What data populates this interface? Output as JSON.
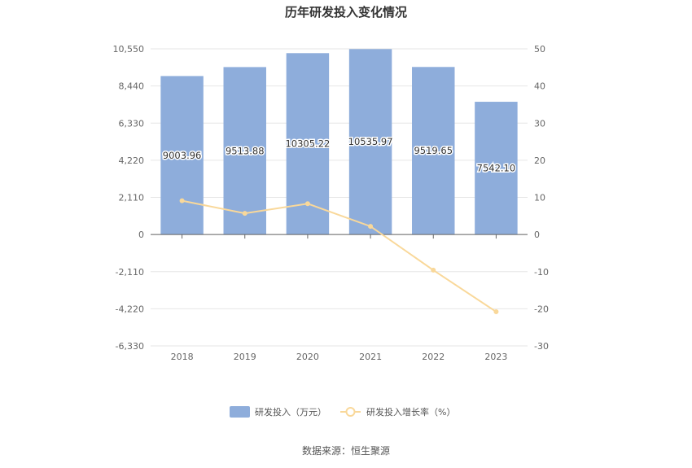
{
  "chart_data": {
    "type": "bar",
    "title": "历年研发投入变化情况",
    "categories": [
      "2018",
      "2019",
      "2020",
      "2021",
      "2022",
      "2023"
    ],
    "series": [
      {
        "name": "研发投入（万元）",
        "type": "bar",
        "axis": "left",
        "color": "#8eaddb",
        "values": [
          9003.96,
          9513.88,
          10305.22,
          10535.97,
          9519.65,
          7542.1
        ],
        "labels": [
          "9003.96",
          "9513.88",
          "10305.22",
          "10535.97",
          "9519.65",
          "7542.10"
        ]
      },
      {
        "name": "研发投入增长率（%）",
        "type": "line",
        "axis": "right",
        "color": "#f9d89a",
        "values": [
          9.1,
          5.7,
          8.3,
          2.2,
          -9.6,
          -20.8
        ]
      }
    ],
    "y_left": {
      "ylim": [
        -6330,
        10550
      ],
      "ticks": [
        10550,
        8440,
        6330,
        4220,
        2110,
        0,
        -2110,
        -4220,
        -6330
      ],
      "tick_labels": [
        "10,550",
        "8,440",
        "6,330",
        "4,220",
        "2,110",
        "0",
        "-2,110",
        "-4,220",
        "-6,330"
      ]
    },
    "y_right": {
      "ylim": [
        -30,
        50
      ],
      "ticks": [
        50,
        40,
        30,
        20,
        10,
        0,
        -10,
        -20,
        -30
      ],
      "tick_labels": [
        "50",
        "40",
        "30",
        "20",
        "10",
        "0",
        "-10",
        "-20",
        "-30"
      ]
    },
    "grid": true,
    "legend": "bottom-center"
  },
  "source_text": "数据来源：恒生聚源"
}
